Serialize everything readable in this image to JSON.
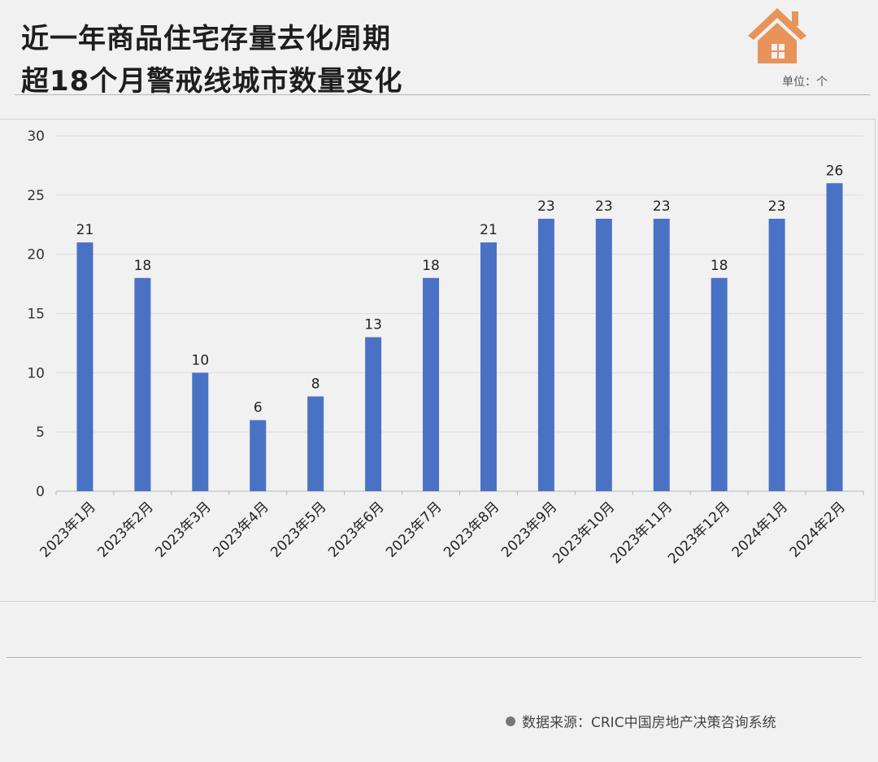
{
  "header": {
    "title_line1": "近一年商品住宅存量去化周期",
    "title_line2": "超18个月警戒线城市数量变化",
    "unit": "单位：个",
    "icon": "house-icon",
    "icon_color": "#e8935a"
  },
  "footer": {
    "source": "数据来源：CRIC中国房地产决策咨询系统"
  },
  "chart_data": {
    "type": "bar",
    "categories": [
      "2023年1月",
      "2023年2月",
      "2023年3月",
      "2023年4月",
      "2023年5月",
      "2023年6月",
      "2023年7月",
      "2023年8月",
      "2023年9月",
      "2023年10月",
      "2023年11月",
      "2023年12月",
      "2024年1月",
      "2024年2月"
    ],
    "values": [
      21,
      18,
      10,
      6,
      8,
      13,
      18,
      21,
      23,
      23,
      23,
      18,
      23,
      26
    ],
    "ylim": [
      0,
      30
    ],
    "yticks": [
      0,
      5,
      10,
      15,
      20,
      25,
      30
    ],
    "grid": true,
    "data_labels": true,
    "bar_color": "#4a72c4",
    "xlabel": "",
    "ylabel": ""
  }
}
